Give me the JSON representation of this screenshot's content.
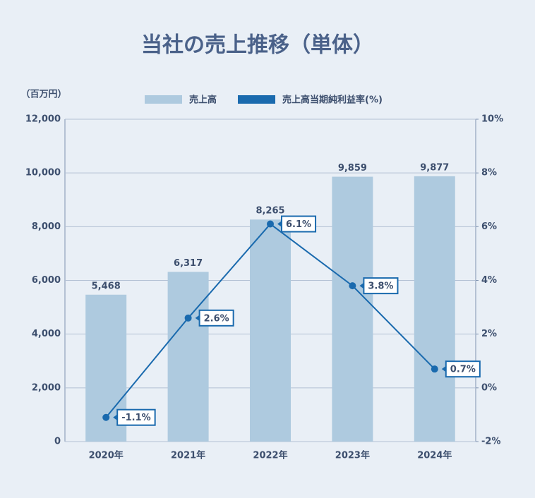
{
  "chart_data": {
    "type": "bar",
    "title": "当社の売上推移（単体）",
    "y_axis_label": "（百万円）",
    "categories": [
      "2020年",
      "2021年",
      "2022年",
      "2023年",
      "2024年"
    ],
    "series": [
      {
        "name": "売上高",
        "type": "bar",
        "color": "#aecadf",
        "values": [
          5468,
          6317,
          8265,
          9859,
          9877
        ],
        "value_labels": [
          "5,468",
          "6,317",
          "8,265",
          "9,859",
          "9,877"
        ]
      },
      {
        "name": "売上高当期純利益率(%)",
        "type": "line",
        "axis": "y2",
        "color": "#1a6aae",
        "values": [
          -1.1,
          2.6,
          6.1,
          3.8,
          0.7
        ],
        "value_labels": [
          "-1.1%",
          "2.6%",
          "6.1%",
          "3.8%",
          "0.7%"
        ]
      }
    ],
    "ylim": [
      0,
      12000
    ],
    "yticks": [
      0,
      {
        "value": 2000,
        "label": "2,000"
      },
      {
        "value": 4000,
        "label": "4,000"
      },
      {
        "value": 6000,
        "label": "6,000"
      },
      {
        "value": 8000,
        "label": "8,000"
      },
      {
        "value": 10000,
        "label": "10,000"
      },
      {
        "value": 12000,
        "label": "12,000"
      }
    ],
    "y2lim": [
      -2,
      10
    ],
    "y2ticks": [
      {
        "value": -2,
        "label": "-2%"
      },
      {
        "value": 0,
        "label": "0%"
      },
      {
        "value": 2,
        "label": "2%"
      },
      {
        "value": 4,
        "label": "4%"
      },
      {
        "value": 6,
        "label": "6%"
      },
      {
        "value": 8,
        "label": "8%"
      },
      {
        "value": 10,
        "label": "10%"
      }
    ],
    "grid": true
  }
}
